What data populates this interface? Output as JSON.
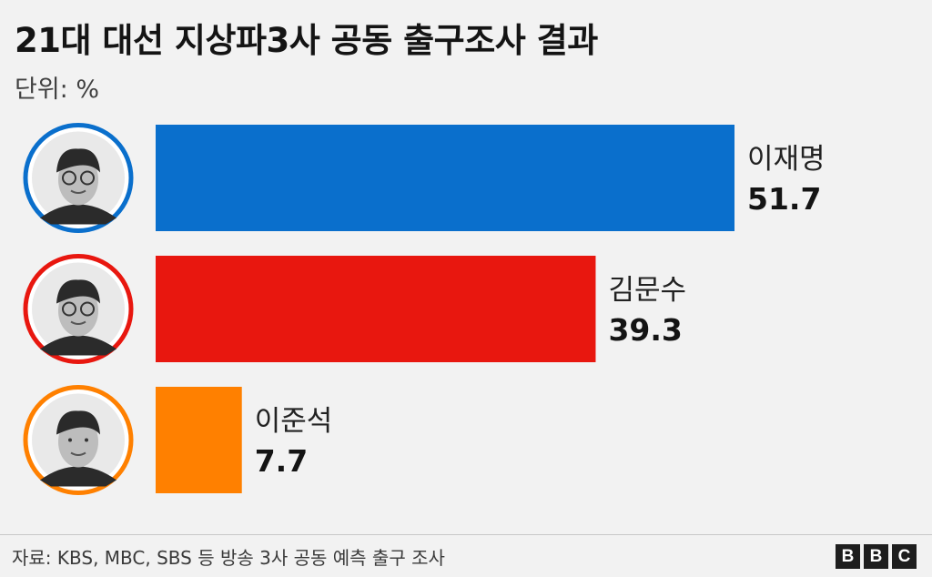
{
  "header": {
    "title": "21대 대선 지상파3사 공동 출구조사 결과",
    "unit": "단위: %"
  },
  "chart_data": {
    "type": "bar",
    "orientation": "horizontal",
    "categories": [
      "이재명",
      "김문수",
      "이준석"
    ],
    "values": [
      51.7,
      39.3,
      7.7
    ],
    "colors": [
      "#0a6fcc",
      "#e8170f",
      "#ff8000"
    ],
    "title": "21대 대선 지상파3사 공동 출구조사 결과",
    "xlabel": "",
    "ylabel": "",
    "xlim": [
      0,
      60
    ],
    "grid": false,
    "legend": "none"
  },
  "candidates": [
    {
      "name": "이재명",
      "value_label": "51.7",
      "avatar_icon": "candidate-portrait-icon",
      "ring_color": "#0a6fcc"
    },
    {
      "name": "김문수",
      "value_label": "39.3",
      "avatar_icon": "candidate-portrait-icon",
      "ring_color": "#e8170f"
    },
    {
      "name": "이준석",
      "value_label": "7.7",
      "avatar_icon": "candidate-portrait-icon",
      "ring_color": "#ff8000"
    }
  ],
  "footer": {
    "source": "자료: KBS, MBC, SBS 등 방송 3사 공동 예측 출구 조사",
    "logo_letters": [
      "B",
      "B",
      "C"
    ]
  }
}
